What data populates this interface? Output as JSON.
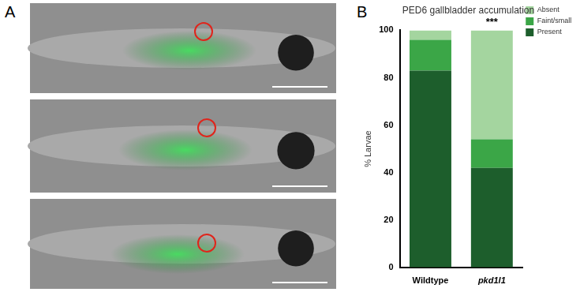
{
  "panel_labels": [
    "A",
    "B"
  ],
  "chart_data": {
    "type": "bar",
    "title": "PED6 gallbladder accumulation",
    "y_label": "% Larvae",
    "categories": [
      "Wildtype",
      "pkd1l1"
    ],
    "series": [
      {
        "name": "Present",
        "color": "#1d5e2c",
        "values": [
          83,
          42
        ]
      },
      {
        "name": "Faint/small",
        "color": "#3ba647",
        "values": [
          13,
          12
        ]
      },
      {
        "name": "Absent",
        "color": "#a4d59f",
        "values": [
          4,
          46
        ]
      }
    ],
    "stacked": true,
    "ylim": [
      0,
      100
    ],
    "yticks": [
      0,
      20,
      40,
      60,
      80,
      100
    ],
    "grid": false,
    "legend": "right",
    "annotations": [
      {
        "text": "***",
        "category": "pkd1l1"
      }
    ]
  }
}
